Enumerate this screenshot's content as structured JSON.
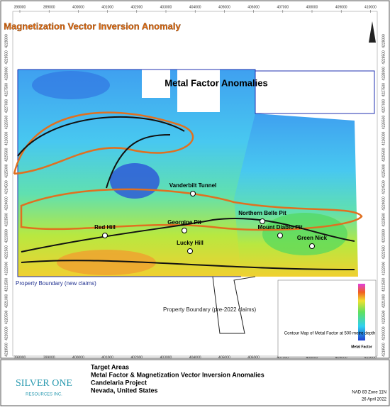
{
  "map": {
    "title_lines": [
      "Target Areas",
      "Metal Factor & Magnetization Vector Inversion Anomalies",
      "Candelaria Project",
      "Nevada, United States"
    ],
    "logo": {
      "name": "SILVER ONE",
      "sub": "RESOURCES INC."
    },
    "datum": "NAD 83 Zone 11N",
    "date": "26 April 2022",
    "easting_ticks": [
      398000,
      399000,
      400000,
      401000,
      402000,
      403000,
      404000,
      405000,
      406000,
      407000,
      408000,
      409000,
      410000
    ],
    "northing_ticks": [
      4229000,
      4228500,
      4228000,
      4227500,
      4227000,
      4226500,
      4226000,
      4225500,
      4225000,
      4224500,
      4224000,
      4223500,
      4223000,
      4222500,
      4222000,
      4221500,
      4221000,
      4220500,
      4220000,
      4219500
    ],
    "annotations": {
      "mvi": "Magnetization Vector Inversion Anomaly",
      "metal": "Metal Factor Anomalies",
      "new_claims": "Property Boundary (new claims)",
      "old_claims": "Property Boundary (pre-2022 claims)"
    },
    "sites": [
      "Vanderbilt Tunnel",
      "Northern Belle Pit",
      "Red Hill",
      "Georgine Pit",
      "Mount Diablo Pit",
      "Lucky Hill",
      "Green Nick"
    ],
    "legend": {
      "caption": "Contour Map of Metal Factor at 500 metre depth",
      "label": "Metal Factor"
    }
  }
}
